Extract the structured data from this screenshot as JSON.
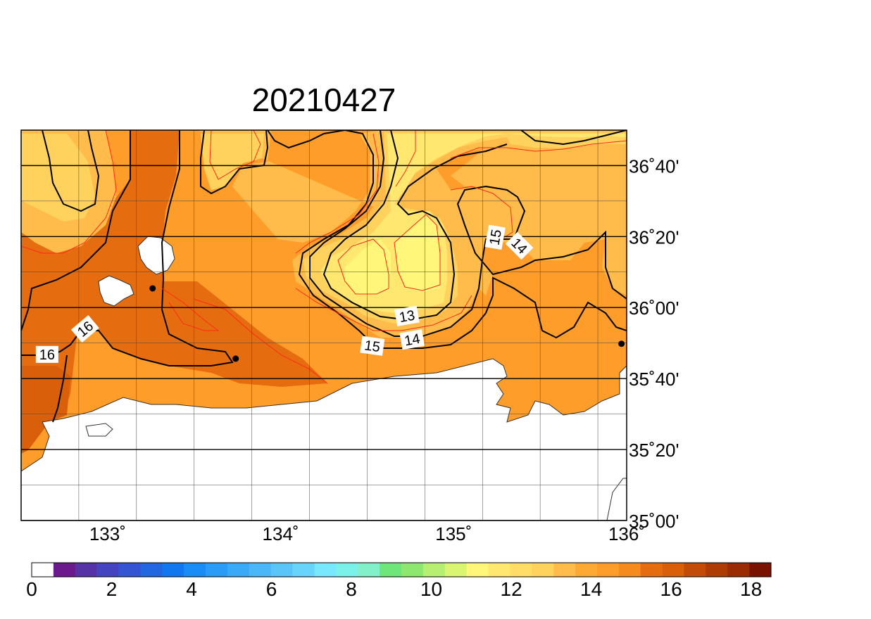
{
  "title": "20210427",
  "map": {
    "lon_range": [
      132.5,
      136.0
    ],
    "lat_range": [
      35.0,
      36.833
    ],
    "lon_ticks": [
      {
        "value": 133,
        "label": "133˚"
      },
      {
        "value": 134,
        "label": "134˚"
      },
      {
        "value": 135,
        "label": "135˚"
      },
      {
        "value": 136,
        "label": "136˚"
      }
    ],
    "lat_ticks": [
      {
        "value": 35.0,
        "label": "35˚00'"
      },
      {
        "value": 35.3333,
        "label": "35˚20'"
      },
      {
        "value": 35.6667,
        "label": "35˚40'"
      },
      {
        "value": 36.0,
        "label": "36˚00'"
      },
      {
        "value": 36.3333,
        "label": "36˚20'"
      },
      {
        "value": 36.6667,
        "label": "36˚40'"
      }
    ],
    "contour_labels": [
      {
        "text": "16",
        "lon": 132.65,
        "lat": 35.78,
        "angle": 0
      },
      {
        "text": "16",
        "lon": 132.87,
        "lat": 35.9,
        "angle": -40
      },
      {
        "text": "13",
        "lon": 134.73,
        "lat": 35.96,
        "angle": -10
      },
      {
        "text": "14",
        "lon": 134.76,
        "lat": 35.85,
        "angle": -10
      },
      {
        "text": "15",
        "lon": 134.53,
        "lat": 35.82,
        "angle": 8
      },
      {
        "text": "15",
        "lon": 135.24,
        "lat": 36.33,
        "angle": -80
      },
      {
        "text": "14",
        "lon": 135.38,
        "lat": 36.29,
        "angle": 45
      }
    ],
    "stations": [
      {
        "lon": 133.26,
        "lat": 36.09
      },
      {
        "lon": 133.74,
        "lat": 35.76
      },
      {
        "lon": 135.97,
        "lat": 35.83
      }
    ]
  },
  "colorbar": {
    "colors": [
      "#ffffff",
      "#6a1a8c",
      "#5533a6",
      "#4444c0",
      "#3355d4",
      "#2266e0",
      "#1177ee",
      "#1a8cf5",
      "#2a9bf7",
      "#3aaaf8",
      "#4ab8f8",
      "#5ac5f9",
      "#66d4fb",
      "#77e8ff",
      "#7af2ea",
      "#82f0c8",
      "#6fe67a",
      "#8ee870",
      "#b6ef72",
      "#d9f572",
      "#fff67a",
      "#ffe770",
      "#ffdd66",
      "#ffd25e",
      "#ffbc4a",
      "#ffa935",
      "#ff9d2a",
      "#f58a1e",
      "#e56d0f",
      "#d95f0b",
      "#c24b07",
      "#ad3b04",
      "#9a2b02",
      "#7a1200"
    ],
    "min": 0,
    "max": 18.5,
    "tick_labels": [
      "0",
      "2",
      "4",
      "6",
      "8",
      "10",
      "12",
      "14",
      "16",
      "18"
    ]
  }
}
